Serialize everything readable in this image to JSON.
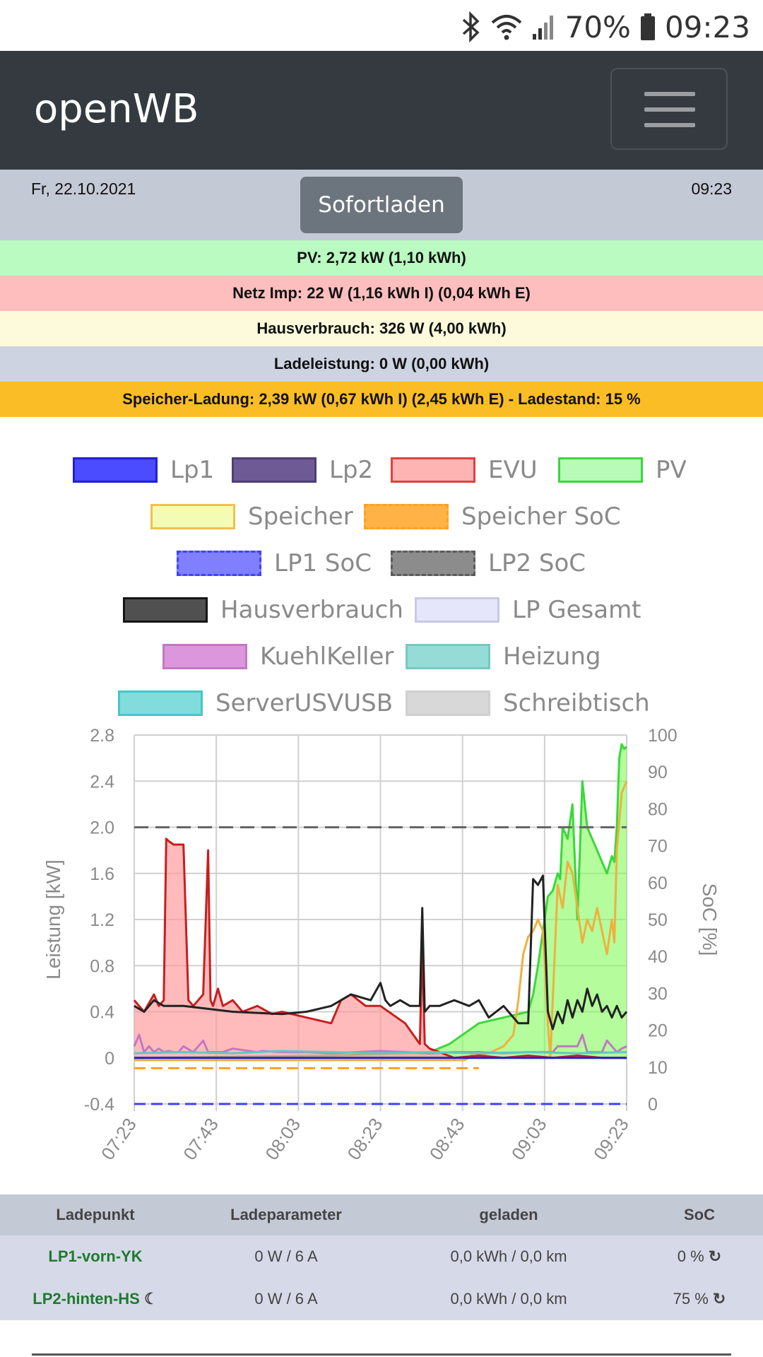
{
  "statusbar": {
    "battery": "70%",
    "time": "09:23"
  },
  "navbar": {
    "brand": "openWB"
  },
  "info": {
    "date": "Fr, 22.10.2021",
    "time": "09:23",
    "mode_button": "Sofortladen"
  },
  "summary_rows": [
    {
      "text": "PV: 2,72 kW (1,10 kWh)",
      "color": "#b9fbc0"
    },
    {
      "text": "Netz Imp: 22 W (1,16 kWh I) (0,04 kWh E)",
      "color": "#ffbebe"
    },
    {
      "text": "Hausverbrauch: 326 W (4,00 kWh)",
      "color": "#fdfadb"
    },
    {
      "text": "Ladeleistung: 0 W (0,00 kWh)",
      "color": "#cdd3e1"
    },
    {
      "text": "Speicher-Ladung: 2,39 kW (0,67 kWh I) (2,45 kWh E) - Ladestand: 15 %",
      "color": "#fbbd26"
    }
  ],
  "legend": [
    {
      "label": "Lp1",
      "fill": "#4b4bff",
      "border": "#2020d0",
      "dashed": false
    },
    {
      "label": "Lp2",
      "fill": "#6e5b96",
      "border": "#4d3f73",
      "dashed": false
    },
    {
      "label": "EVU",
      "fill": "#ffb4b4",
      "border": "#e04040",
      "dashed": false
    },
    {
      "label": "PV",
      "fill": "#b8fbb8",
      "border": "#3ad83a",
      "dashed": false
    },
    {
      "label": "Speicher",
      "fill": "#f3fcb2",
      "border": "#f0c050",
      "dashed": false
    },
    {
      "label": "Speicher SoC",
      "fill": "#ffb347",
      "border": "#ffa020",
      "dashed": true
    },
    {
      "label": "LP1 SoC",
      "fill": "#7f7fff",
      "border": "#4040ff",
      "dashed": true
    },
    {
      "label": "LP2 SoC",
      "fill": "#8c8c8c",
      "border": "#5a5a5a",
      "dashed": true
    },
    {
      "label": "Hausverbrauch",
      "fill": "#505050",
      "border": "#151515",
      "dashed": false
    },
    {
      "label": "LP Gesamt",
      "fill": "#e6e6fb",
      "border": "#c8c8e6",
      "dashed": false
    },
    {
      "label": "KuehlKeller",
      "fill": "#dc96dc",
      "border": "#c278c2",
      "dashed": false
    },
    {
      "label": "Heizung",
      "fill": "#96dcd6",
      "border": "#78c8c0",
      "dashed": false
    },
    {
      "label": "ServerUSVUSB",
      "fill": "#82dcdc",
      "border": "#40c8c8",
      "dashed": false
    },
    {
      "label": "Schreibtisch",
      "fill": "#d8d8d8",
      "border": "#d0d0d0",
      "dashed": false
    }
  ],
  "chart_data": {
    "type": "line",
    "ylabel": "Leistung [kW]",
    "y2label": "SoC [%]",
    "ylim": [
      -0.4,
      2.8
    ],
    "y2lim": [
      0,
      100
    ],
    "yticks": [
      "2.8",
      "2.4",
      "2.0",
      "1.6",
      "1.2",
      "0.8",
      "0.4",
      "0",
      "-0.4"
    ],
    "y2ticks": [
      "100",
      "90",
      "80",
      "70",
      "60",
      "50",
      "40",
      "30",
      "20",
      "10",
      "0"
    ],
    "xticks": [
      "07:23",
      "07:43",
      "08:03",
      "08:23",
      "08:43",
      "09:03",
      "09:23"
    ],
    "grid": true,
    "series": [
      {
        "name": "PV",
        "color": "#3ad83a",
        "fill": "rgba(130,250,90,0.6)",
        "x": [
          0,
          40,
          60,
          64,
          70,
          75,
          80,
          81,
          82,
          83,
          84,
          85,
          86,
          86.5,
          87,
          88,
          89,
          90,
          91,
          92,
          93,
          94,
          95,
          96,
          97,
          97.5,
          98,
          98.5,
          99,
          99.5,
          100
        ],
        "y": [
          0,
          0.02,
          0.05,
          0.12,
          0.3,
          0.35,
          0.4,
          0.55,
          0.8,
          1.1,
          1.4,
          1.45,
          1.6,
          1.55,
          2.0,
          1.9,
          2.2,
          1.2,
          2.4,
          2.0,
          1.9,
          1.8,
          1.7,
          1.6,
          1.75,
          1.7,
          2.0,
          2.6,
          2.72,
          2.68,
          2.7
        ]
      },
      {
        "name": "Speicher",
        "color": "#f0b040",
        "fill": "none",
        "x": [
          0,
          67,
          68,
          69,
          70,
          72,
          75,
          77,
          78,
          79,
          80,
          81,
          82,
          83,
          84,
          84.5,
          85,
          86,
          87,
          88,
          89,
          90,
          91,
          92,
          93,
          94,
          95,
          96,
          97,
          97.5,
          98,
          99,
          100
        ],
        "y": [
          -0.02,
          -0.02,
          0.0,
          0.05,
          0.02,
          0.04,
          0.1,
          0.2,
          0.5,
          0.9,
          1.05,
          1.1,
          1.2,
          1.1,
          0.3,
          0.0,
          0.5,
          1.5,
          1.3,
          1.7,
          1.6,
          1.3,
          1.0,
          1.2,
          1.1,
          1.3,
          1.1,
          0.9,
          1.2,
          1.0,
          1.8,
          2.3,
          2.4
        ]
      },
      {
        "name": "EVU",
        "color": "#c81e1e",
        "fill": "rgba(255,150,150,0.65)",
        "x": [
          0,
          2,
          4,
          5,
          6,
          6.5,
          7,
          8,
          10,
          11,
          12,
          14,
          15,
          15.5,
          16,
          17,
          18,
          20,
          22,
          25,
          28,
          30,
          35,
          40,
          42,
          44,
          47,
          50,
          55,
          58,
          58.5,
          59,
          60,
          62,
          65,
          70,
          75,
          80,
          85,
          90,
          95,
          100
        ],
        "y": [
          0.5,
          0.4,
          0.55,
          0.45,
          0.5,
          1.9,
          1.88,
          1.85,
          1.85,
          0.5,
          0.45,
          0.55,
          1.8,
          0.5,
          0.45,
          0.6,
          0.45,
          0.5,
          0.4,
          0.45,
          0.38,
          0.4,
          0.35,
          0.3,
          0.5,
          0.55,
          0.45,
          0.45,
          0.3,
          0.12,
          0.98,
          0.12,
          0.08,
          0.05,
          0.0,
          0.02,
          0.0,
          0.02,
          0.0,
          0.02,
          0.0,
          0.0
        ]
      },
      {
        "name": "Hausverbrauch",
        "color": "#222222",
        "fill": "none",
        "x": [
          0,
          2,
          4,
          6,
          10,
          20,
          30,
          35,
          40,
          42,
          44,
          48,
          50,
          51,
          52,
          54,
          56,
          58,
          58.5,
          59,
          60,
          62,
          65,
          68,
          70,
          72,
          75,
          78,
          80,
          81,
          82,
          83,
          84,
          85,
          86,
          87,
          88,
          89,
          90,
          91,
          92,
          93,
          94,
          95,
          96,
          97,
          98,
          99,
          100
        ],
        "y": [
          0.45,
          0.4,
          0.5,
          0.45,
          0.45,
          0.4,
          0.38,
          0.4,
          0.45,
          0.5,
          0.55,
          0.5,
          0.65,
          0.5,
          0.45,
          0.5,
          0.45,
          0.45,
          1.3,
          0.4,
          0.45,
          0.45,
          0.5,
          0.45,
          0.5,
          0.35,
          0.45,
          0.3,
          0.3,
          1.55,
          1.5,
          1.58,
          0.4,
          0.25,
          0.4,
          0.3,
          0.5,
          0.35,
          0.5,
          0.4,
          0.6,
          0.45,
          0.55,
          0.4,
          0.45,
          0.35,
          0.45,
          0.35,
          0.4
        ]
      },
      {
        "name": "KuehlKeller",
        "color": "#c278c2",
        "fill": "none",
        "x": [
          0,
          1,
          2,
          3,
          4,
          5,
          6,
          7,
          8,
          9,
          10,
          12,
          14,
          15,
          16,
          18,
          20,
          25,
          26,
          30,
          35,
          40,
          45,
          50,
          55,
          60,
          65,
          70,
          75,
          80,
          85,
          86,
          90,
          91,
          92,
          95,
          96,
          97,
          98,
          99,
          100
        ],
        "y": [
          0.1,
          0.2,
          0.05,
          0.1,
          0.05,
          0.08,
          0.05,
          0.06,
          0.05,
          0.05,
          0.1,
          0.05,
          0.15,
          0.05,
          0.05,
          0.05,
          0.08,
          0.05,
          0.06,
          0.05,
          0.05,
          0.04,
          0.05,
          0.06,
          0.05,
          0.04,
          0.05,
          0.05,
          0.04,
          0.05,
          0.05,
          0.1,
          0.1,
          0.2,
          0.05,
          0.05,
          0.15,
          0.1,
          0.05,
          0.08,
          0.1
        ]
      },
      {
        "name": "Heizung",
        "color": "#60c8c0",
        "fill": "none",
        "x": [
          0,
          10,
          20,
          30,
          40,
          50,
          60,
          70,
          80,
          90,
          100
        ],
        "y": [
          0.04,
          0.05,
          0.04,
          0.06,
          0.05,
          0.04,
          0.05,
          0.04,
          0.05,
          0.04,
          0.05
        ]
      },
      {
        "name": "Lp1",
        "color": "#2020d0",
        "fill": "none",
        "x": [
          0,
          100
        ],
        "y": [
          0,
          0
        ]
      },
      {
        "name": "LP2 SoC",
        "color": "#666666",
        "dash": "20,10",
        "axis": "y2",
        "x": [
          0,
          100
        ],
        "y": [
          75,
          75
        ]
      },
      {
        "name": "Speicher SoC",
        "color": "#ffa020",
        "dash": "16,8",
        "axis": "y2",
        "x": [
          0,
          70
        ],
        "y": [
          9.7,
          9.7
        ]
      },
      {
        "name": "LP1 SoC",
        "color": "#4040ff",
        "dash": "16,8",
        "axis": "y2",
        "x": [
          0,
          100
        ],
        "y": [
          0,
          0
        ]
      }
    ]
  },
  "table": {
    "headers": [
      "Ladepunkt",
      "Ladeparameter",
      "geladen",
      "SoC"
    ],
    "rows": [
      {
        "name": "LP1-vorn-YK",
        "param": "0 W / 6 A",
        "charged": "0,0 kWh / 0,0 km",
        "soc": "0 %"
      },
      {
        "name": "LP2-hinten-HS",
        "param": "0 W / 6 A",
        "charged": "0,0 kWh / 0,0 km",
        "soc": "75 %"
      }
    ]
  }
}
